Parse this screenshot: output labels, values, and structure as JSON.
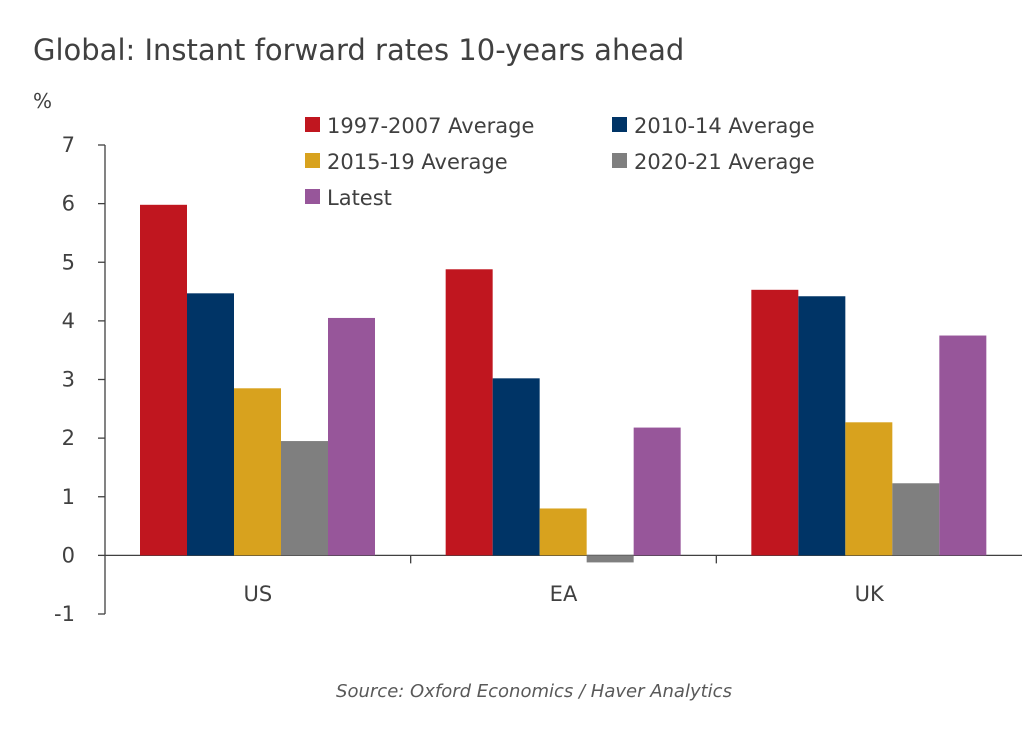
{
  "chart_data": {
    "type": "bar",
    "title": "Global: Instant forward rates 10-years ahead",
    "ylabel": "%",
    "xlabel": "",
    "source": "Source: Oxford Economics / Haver Analytics",
    "categories": [
      "US",
      "EA",
      "UK"
    ],
    "ylim": [
      -1,
      7
    ],
    "yticks": [
      -1,
      0,
      1,
      2,
      3,
      4,
      5,
      6,
      7
    ],
    "grid": false,
    "legend_position": "top-center",
    "series": [
      {
        "name": "1997-2007 Average",
        "color": "#C0161F",
        "values": [
          5.98,
          4.88,
          4.53
        ]
      },
      {
        "name": "2010-14 Average",
        "color": "#003466",
        "values": [
          4.47,
          3.02,
          4.42
        ]
      },
      {
        "name": "2015-19 Average",
        "color": "#D8A21E",
        "values": [
          2.85,
          0.8,
          2.27
        ]
      },
      {
        "name": "2020-21 Average",
        "color": "#7F7F7F",
        "values": [
          1.95,
          -0.12,
          1.23
        ]
      },
      {
        "name": "Latest",
        "color": "#97569A",
        "values": [
          4.05,
          2.18,
          3.75
        ]
      }
    ]
  }
}
